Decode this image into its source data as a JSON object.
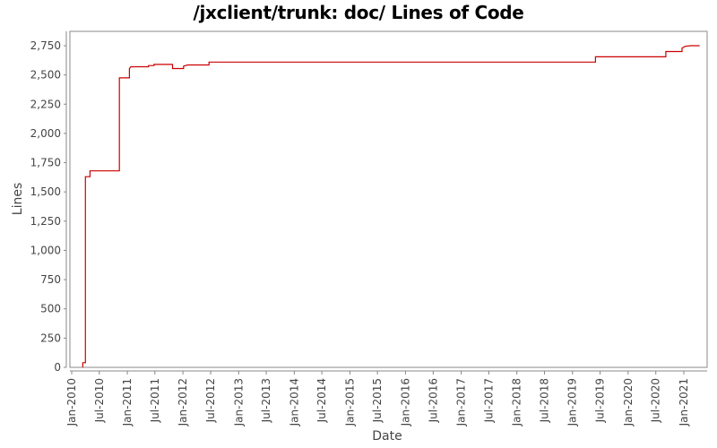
{
  "chart_data": {
    "type": "line",
    "title": "/jxclient/trunk: doc/ Lines of Code",
    "xlabel": "Date",
    "ylabel": "Lines",
    "ylim": [
      0,
      2750
    ],
    "xlim": [
      "2010-01",
      "2021-06"
    ],
    "grid": false,
    "legend": null,
    "line_color": "#cc0000",
    "step": true,
    "y_ticks": [
      "0",
      "250",
      "500",
      "750",
      "1,000",
      "1,250",
      "1,500",
      "1,750",
      "2,000",
      "2,250",
      "2,500",
      "2,750"
    ],
    "x_ticks": [
      "Jan-2010",
      "Jul-2010",
      "Jan-2011",
      "Jul-2011",
      "Jan-2012",
      "Jul-2012",
      "Jan-2013",
      "Jul-2013",
      "Jan-2014",
      "Jul-2014",
      "Jan-2015",
      "Jul-2015",
      "Jan-2016",
      "Jul-2016",
      "Jan-2017",
      "Jul-2017",
      "Jan-2018",
      "Jul-2018",
      "Jan-2019",
      "Jul-2019",
      "Jan-2020",
      "Jul-2020",
      "Jan-2021"
    ],
    "points": [
      {
        "x": "2010-03-15",
        "y": 0
      },
      {
        "x": "2010-03-15",
        "y": 40
      },
      {
        "x": "2010-04-01",
        "y": 40
      },
      {
        "x": "2010-04-01",
        "y": 1630
      },
      {
        "x": "2010-05-01",
        "y": 1630
      },
      {
        "x": "2010-05-01",
        "y": 1680
      },
      {
        "x": "2010-11-10",
        "y": 1680
      },
      {
        "x": "2010-11-10",
        "y": 2475
      },
      {
        "x": "2011-01-15",
        "y": 2475
      },
      {
        "x": "2011-01-15",
        "y": 2555
      },
      {
        "x": "2011-01-25",
        "y": 2570
      },
      {
        "x": "2011-05-20",
        "y": 2570
      },
      {
        "x": "2011-05-20",
        "y": 2580
      },
      {
        "x": "2011-06-25",
        "y": 2580
      },
      {
        "x": "2011-06-25",
        "y": 2590
      },
      {
        "x": "2011-10-25",
        "y": 2590
      },
      {
        "x": "2011-10-25",
        "y": 2555
      },
      {
        "x": "2012-01-05",
        "y": 2555
      },
      {
        "x": "2012-01-05",
        "y": 2575
      },
      {
        "x": "2012-02-01",
        "y": 2585
      },
      {
        "x": "2012-06-20",
        "y": 2585
      },
      {
        "x": "2012-06-20",
        "y": 2610
      },
      {
        "x": "2019-06-01",
        "y": 2610
      },
      {
        "x": "2019-06-01",
        "y": 2655
      },
      {
        "x": "2020-09-05",
        "y": 2655
      },
      {
        "x": "2020-09-05",
        "y": 2700
      },
      {
        "x": "2020-12-20",
        "y": 2700
      },
      {
        "x": "2020-12-20",
        "y": 2730
      },
      {
        "x": "2021-01-10",
        "y": 2745
      },
      {
        "x": "2021-02-15",
        "y": 2750
      },
      {
        "x": "2021-04-15",
        "y": 2750
      }
    ]
  }
}
